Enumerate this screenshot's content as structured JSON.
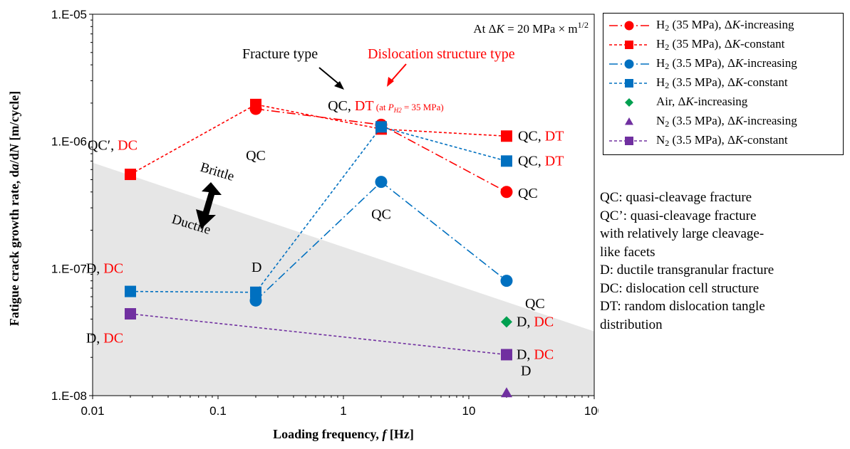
{
  "chart_data": {
    "type": "scatter",
    "x_scale": "log",
    "y_scale": "log",
    "xlim": [
      0.01,
      100
    ],
    "ylim": [
      1e-08,
      1e-05
    ],
    "x_ticks": [
      "0.01",
      "0.1",
      "1",
      "10",
      "100"
    ],
    "y_ticks": [
      "1.E-08",
      "1.E-07",
      "1.E-06",
      "1.E-05"
    ],
    "xlabel_parts": [
      "Loading frequency, ",
      "f",
      " [Hz]"
    ],
    "ylabel_parts": [
      "Fatigue crack growth rate, d",
      "a",
      "/d",
      "N",
      " [m/cycle]"
    ],
    "condition_parts": [
      "At Δ",
      "K",
      " = 20 MPa × m",
      "1/2"
    ],
    "grid": false,
    "legend_position": "right-top",
    "series": [
      {
        "label_parts": [
          "H",
          "2",
          " (35 MPa), Δ",
          "K",
          "-increasing"
        ],
        "marker": "circle",
        "color": "#ff0000",
        "dash": "12,4,2,4",
        "x": [
          0.2,
          2,
          20
        ],
        "y": [
          1.8e-06,
          1.35e-06,
          4e-07
        ]
      },
      {
        "label_parts": [
          "H",
          "2",
          " (35 MPa), Δ",
          "K",
          "-constant"
        ],
        "marker": "square",
        "color": "#ff0000",
        "dash": "4,3",
        "x": [
          0.02,
          0.2,
          2,
          20
        ],
        "y": [
          5.5e-07,
          1.95e-06,
          1.25e-06,
          1.1e-06
        ]
      },
      {
        "label_parts": [
          "H",
          "2",
          " (3.5 MPa), Δ",
          "K",
          "-increasing"
        ],
        "marker": "circle",
        "color": "#0070c0",
        "dash": "12,4,2,4",
        "x": [
          0.2,
          2,
          20
        ],
        "y": [
          5.6e-08,
          4.8e-07,
          8e-08
        ]
      },
      {
        "label_parts": [
          "H",
          "2",
          " (3.5 MPa), Δ",
          "K",
          "-constant"
        ],
        "marker": "square",
        "color": "#0070c0",
        "dash": "4,3",
        "x": [
          0.02,
          0.2,
          2,
          20
        ],
        "y": [
          6.6e-08,
          6.5e-08,
          1.3e-06,
          7e-07
        ]
      },
      {
        "label_parts": [
          "Air, Δ",
          "K",
          "-increasing"
        ],
        "marker": "diamond",
        "color": "#00a050",
        "dash": "",
        "x": [
          20
        ],
        "y": [
          3.8e-08
        ]
      },
      {
        "label_parts": [
          "N",
          "2",
          " (3.5 MPa), Δ",
          "K",
          "-increasing"
        ],
        "marker": "triangle",
        "color": "#7030a0",
        "dash": "",
        "x": [
          20
        ],
        "y": [
          1.05e-08
        ]
      },
      {
        "label_parts": [
          "N",
          "2",
          " (3.5 MPa), Δ",
          "K",
          "-constant"
        ],
        "marker": "square",
        "color": "#7030a0",
        "dash": "4,3",
        "x": [
          0.02,
          20
        ],
        "y": [
          4.4e-08,
          2.1e-08
        ]
      }
    ],
    "shaded_region": {
      "left_y": 6.8e-07,
      "right_y": 3.2e-08,
      "color": "#e6e6e6"
    },
    "region_labels": {
      "upper": "Brittle",
      "lower": "Ductile"
    },
    "annotations": [
      {
        "x": 0.02,
        "y": 9.3e-07,
        "text": "QC′, ",
        "red": "DC"
      },
      {
        "x": 0.2,
        "y": 1.05e-06,
        "text": "QC",
        "red": ""
      },
      {
        "x": 0.95,
        "y": 1.95e-06,
        "text": "QC, ",
        "red": "DT",
        "small_parts": [
          "(at ",
          "P",
          "H2",
          " = 35 MPa)"
        ]
      },
      {
        "x": 20,
        "y": 1.1e-06,
        "text": "QC, ",
        "red": "DT"
      },
      {
        "x": 20,
        "y": 7e-07,
        "text": "QC, ",
        "red": "DT"
      },
      {
        "x": 20,
        "y": 4e-07,
        "text": "QC",
        "red": ""
      },
      {
        "x": 2,
        "y": 2.95e-07,
        "text": "QC",
        "red": ""
      },
      {
        "x": 20,
        "y": 7e-08,
        "text": "QC",
        "red": ""
      },
      {
        "x": 0.02,
        "y": 1e-07,
        "text": "D, ",
        "red": "DC"
      },
      {
        "x": 0.2,
        "y": 1.02e-07,
        "text": "D",
        "red": ""
      },
      {
        "x": 0.02,
        "y": 3.2e-08,
        "text": "D, ",
        "red": "DC"
      },
      {
        "x": 20,
        "y": 3.8e-08,
        "text": "D, ",
        "red": "DC"
      },
      {
        "x": 20,
        "y": 2.1e-08,
        "text": "D, ",
        "red": "DC"
      },
      {
        "x": 20,
        "y": 1.3e-08,
        "text": "D",
        "red": ""
      }
    ],
    "callouts": {
      "fracture_type": "Fracture type",
      "dislocation_type": "Dislocation structure type"
    }
  },
  "notes": [
    "QC: quasi-cleavage fracture",
    "QC’: quasi-cleavage fracture",
    "with relatively large cleavage-",
    "like facets",
    "D: ductile transgranular fracture",
    "DC: dislocation cell structure",
    "DT: random dislocation tangle",
    "distribution"
  ]
}
